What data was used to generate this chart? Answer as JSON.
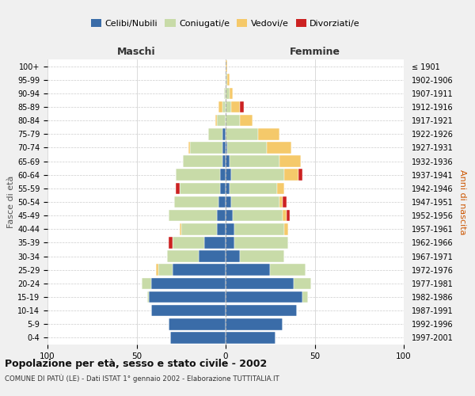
{
  "age_groups": [
    "0-4",
    "5-9",
    "10-14",
    "15-19",
    "20-24",
    "25-29",
    "30-34",
    "35-39",
    "40-44",
    "45-49",
    "50-54",
    "55-59",
    "60-64",
    "65-69",
    "70-74",
    "75-79",
    "80-84",
    "85-89",
    "90-94",
    "95-99",
    "100+"
  ],
  "birth_years": [
    "1997-2001",
    "1992-1996",
    "1987-1991",
    "1982-1986",
    "1977-1981",
    "1972-1976",
    "1967-1971",
    "1962-1966",
    "1957-1961",
    "1952-1956",
    "1947-1951",
    "1942-1946",
    "1937-1941",
    "1932-1936",
    "1927-1931",
    "1922-1926",
    "1917-1921",
    "1912-1916",
    "1907-1911",
    "1902-1906",
    "≤ 1901"
  ],
  "colors": {
    "celibi": "#3a6ca8",
    "coniugati": "#c8dba8",
    "vedovi": "#f5c96a",
    "divorziati": "#cc2222"
  },
  "maschi": {
    "celibi": [
      31,
      32,
      42,
      43,
      42,
      30,
      15,
      12,
      5,
      5,
      4,
      3,
      3,
      2,
      2,
      2,
      0,
      0,
      0,
      0,
      0
    ],
    "coniugati": [
      0,
      0,
      0,
      1,
      5,
      8,
      18,
      18,
      20,
      27,
      25,
      23,
      25,
      22,
      18,
      8,
      5,
      2,
      1,
      0,
      0
    ],
    "vedovi": [
      0,
      0,
      0,
      0,
      0,
      1,
      0,
      0,
      1,
      0,
      0,
      0,
      0,
      0,
      1,
      0,
      1,
      2,
      0,
      0,
      0
    ],
    "divorziati": [
      0,
      0,
      0,
      0,
      0,
      0,
      0,
      2,
      0,
      0,
      0,
      2,
      0,
      0,
      0,
      0,
      0,
      0,
      0,
      0,
      0
    ]
  },
  "femmine": {
    "celibi": [
      28,
      32,
      40,
      43,
      38,
      25,
      8,
      5,
      5,
      4,
      3,
      2,
      3,
      2,
      1,
      0,
      0,
      0,
      0,
      0,
      0
    ],
    "coniugati": [
      0,
      0,
      0,
      3,
      10,
      20,
      25,
      30,
      28,
      28,
      27,
      27,
      30,
      28,
      22,
      18,
      8,
      3,
      2,
      1,
      0
    ],
    "vedovi": [
      0,
      0,
      0,
      0,
      0,
      0,
      0,
      0,
      2,
      2,
      2,
      4,
      8,
      12,
      14,
      12,
      7,
      5,
      2,
      1,
      1
    ],
    "divorziati": [
      0,
      0,
      0,
      0,
      0,
      0,
      0,
      0,
      0,
      2,
      2,
      0,
      2,
      0,
      0,
      0,
      0,
      2,
      0,
      0,
      0
    ]
  },
  "title": "Popolazione per età, sesso e stato civile - 2002",
  "subtitle": "COMUNE DI PATÙ (LE) - Dati ISTAT 1° gennaio 2002 - Elaborazione TUTTITALIA.IT",
  "xlabel_left": "Maschi",
  "xlabel_right": "Femmine",
  "ylabel_left": "Fasce di età",
  "ylabel_right": "Anni di nascita",
  "xlim": 100,
  "legend_labels": [
    "Celibi/Nubili",
    "Coniugati/e",
    "Vedovi/e",
    "Divorziati/e"
  ],
  "bg_color": "#f0f0f0",
  "plot_bg_color": "#ffffff"
}
